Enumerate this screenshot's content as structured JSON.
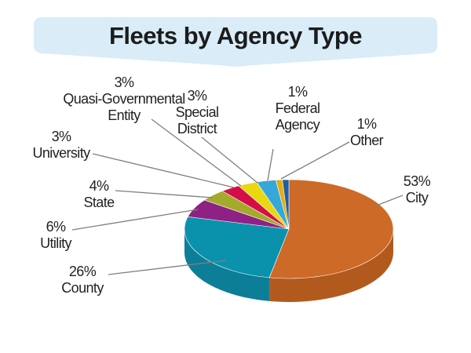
{
  "title": "Fleets by Agency Type",
  "colors": {
    "background": "#ffffff",
    "banner": "#d9ecf8",
    "title_text": "#1c1c1c",
    "label_text": "#231f20",
    "leader_line": "#7f7f7f"
  },
  "chart_data": {
    "type": "pie",
    "title": "Fleets by Agency Type",
    "unit": "percent",
    "effect": "3d",
    "start": "12 o'clock, drawn clockwise",
    "total": 100,
    "slices": [
      {
        "label": "City",
        "value": 53,
        "pct_label": "53%",
        "color": "#cd6a27",
        "side_color": "#b25a1e"
      },
      {
        "label": "County",
        "value": 26,
        "pct_label": "26%",
        "color": "#0a92ad",
        "side_color": "#0c7e97"
      },
      {
        "label": "Utility",
        "value": 6,
        "pct_label": "6%",
        "color": "#8f2185"
      },
      {
        "label": "State",
        "value": 4,
        "pct_label": "4%",
        "color": "#a4aa2c"
      },
      {
        "label": "University",
        "value": 3,
        "pct_label": "3%",
        "color": "#d40e48"
      },
      {
        "label": "Quasi-Governmental Entity",
        "value": 3,
        "pct_label": "3%",
        "color": "#e9d70f"
      },
      {
        "label": "Special District",
        "value": 3,
        "pct_label": "3%",
        "color": "#35a7d8"
      },
      {
        "label": "Federal Agency",
        "value": 1,
        "pct_label": "1%",
        "color": "#e5ad14"
      },
      {
        "label": "Other",
        "value": 1,
        "pct_label": "1%",
        "color": "#235d9d"
      }
    ]
  }
}
